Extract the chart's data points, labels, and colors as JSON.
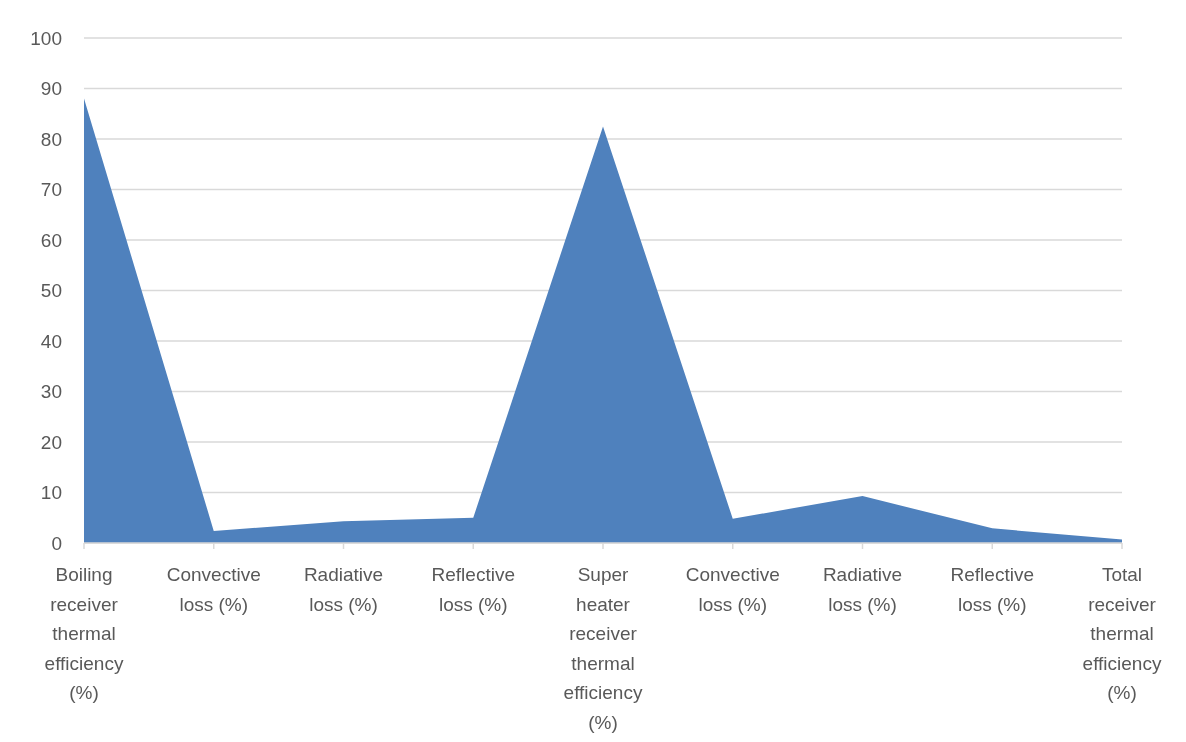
{
  "chart_data": {
    "type": "area",
    "categories": [
      "Boiling receiver thermal efficiency (%)",
      "Convective loss (%)",
      "Radiative loss (%)",
      "Reflective loss (%)",
      "Super heater receiver thermal efficiency (%)",
      "Convective loss (%)",
      "Radiative loss (%)",
      "Reflective loss (%)",
      "Total receiver thermal efficiency (%)"
    ],
    "series": [
      {
        "color": "#4f81bd",
        "values": [
          88,
          2.4,
          4.3,
          5,
          82.5,
          4.8,
          9.3,
          2.9,
          0.7
        ]
      }
    ],
    "ylim": [
      0,
      100
    ],
    "yticks": [
      0,
      10,
      20,
      30,
      40,
      50,
      60,
      70,
      80,
      90,
      100
    ],
    "grid": "y"
  }
}
